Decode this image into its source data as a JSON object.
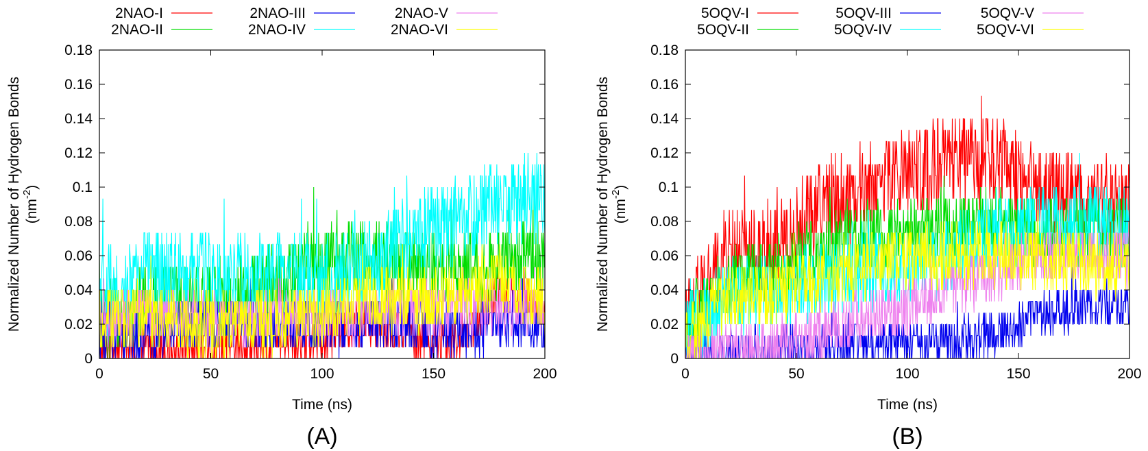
{
  "chart_data": [
    {
      "type": "line",
      "panel_label": "(A)",
      "xlabel": "Time (ns)",
      "ylabel": "Normalized Number of Hydrogen Bonds",
      "ylabel_unit": "(nm",
      "ylabel_unit_exp": "-2",
      "ylabel_unit_close": ")",
      "xlim": [
        0,
        200
      ],
      "ylim": [
        0,
        0.18
      ],
      "xticks": [
        "0",
        "50",
        "100",
        "150",
        "200"
      ],
      "yticks": [
        "0",
        "0.02",
        "0.04",
        "0.06",
        "0.08",
        "0.1",
        "0.12",
        "0.14",
        "0.16",
        "0.18"
      ],
      "legend_position": "top",
      "grid": false,
      "x": [
        0,
        20,
        40,
        60,
        80,
        100,
        120,
        140,
        160,
        180,
        200
      ],
      "series": [
        {
          "name": "2NAO-I",
          "color": "#ff0000",
          "values": [
            0.007,
            0.007,
            0.007,
            0.007,
            0.007,
            0.013,
            0.02,
            0.013,
            0.007,
            0.04,
            0.027
          ],
          "noise": 0.008
        },
        {
          "name": "2NAO-II",
          "color": "#00dd00",
          "values": [
            0.02,
            0.03,
            0.035,
            0.035,
            0.045,
            0.055,
            0.06,
            0.055,
            0.05,
            0.055,
            0.06
          ],
          "noise": 0.014
        },
        {
          "name": "2NAO-III",
          "color": "#0000ee",
          "values": [
            0.013,
            0.013,
            0.02,
            0.02,
            0.02,
            0.02,
            0.02,
            0.02,
            0.015,
            0.02,
            0.02
          ],
          "noise": 0.01
        },
        {
          "name": "2NAO-IV",
          "color": "#00ffff",
          "values": [
            0.035,
            0.05,
            0.05,
            0.045,
            0.05,
            0.05,
            0.055,
            0.07,
            0.08,
            0.09,
            0.095
          ],
          "noise": 0.016
        },
        {
          "name": "2NAO-V",
          "color": "#ee82ee",
          "values": [
            0.02,
            0.025,
            0.025,
            0.02,
            0.025,
            0.025,
            0.025,
            0.03,
            0.03,
            0.03,
            0.03
          ],
          "noise": 0.01
        },
        {
          "name": "2NAO-VI",
          "color": "#ffff00",
          "values": [
            0.025,
            0.025,
            0.02,
            0.02,
            0.02,
            0.025,
            0.035,
            0.035,
            0.035,
            0.045,
            0.035
          ],
          "noise": 0.012
        }
      ]
    },
    {
      "type": "line",
      "panel_label": "(B)",
      "xlabel": "Time (ns)",
      "ylabel": "Normalized Number of Hydrogen Bonds",
      "ylabel_unit": "(nm",
      "ylabel_unit_exp": "-2",
      "ylabel_unit_close": ")",
      "xlim": [
        0,
        200
      ],
      "ylim": [
        0,
        0.18
      ],
      "xticks": [
        "0",
        "50",
        "100",
        "150",
        "200"
      ],
      "yticks": [
        "0",
        "0.02",
        "0.04",
        "0.06",
        "0.08",
        "0.1",
        "0.12",
        "0.14",
        "0.16",
        "0.18"
      ],
      "legend_position": "top",
      "grid": false,
      "x": [
        0,
        20,
        40,
        60,
        80,
        100,
        120,
        140,
        160,
        180,
        200
      ],
      "series": [
        {
          "name": "5OQV-I",
          "color": "#ff0000",
          "values": [
            0.02,
            0.065,
            0.06,
            0.09,
            0.1,
            0.11,
            0.115,
            0.115,
            0.1,
            0.095,
            0.09
          ],
          "noise": 0.016
        },
        {
          "name": "5OQV-II",
          "color": "#00dd00",
          "values": [
            0.02,
            0.045,
            0.05,
            0.065,
            0.07,
            0.075,
            0.075,
            0.08,
            0.075,
            0.075,
            0.075
          ],
          "noise": 0.012
        },
        {
          "name": "5OQV-III",
          "color": "#0000ee",
          "values": [
            0.0,
            0.005,
            0.005,
            0.005,
            0.01,
            0.01,
            0.01,
            0.015,
            0.025,
            0.03,
            0.03
          ],
          "noise": 0.008
        },
        {
          "name": "5OQV-IV",
          "color": "#00ffff",
          "values": [
            0.015,
            0.035,
            0.04,
            0.045,
            0.05,
            0.055,
            0.06,
            0.075,
            0.08,
            0.08,
            0.075
          ],
          "noise": 0.014
        },
        {
          "name": "5OQV-V",
          "color": "#ee82ee",
          "values": [
            0.0,
            0.005,
            0.005,
            0.015,
            0.025,
            0.03,
            0.04,
            0.05,
            0.06,
            0.06,
            0.06
          ],
          "noise": 0.01
        },
        {
          "name": "5OQV-VI",
          "color": "#ffff00",
          "values": [
            0.015,
            0.035,
            0.04,
            0.045,
            0.055,
            0.06,
            0.06,
            0.06,
            0.06,
            0.055,
            0.055
          ],
          "noise": 0.012
        }
      ]
    }
  ]
}
